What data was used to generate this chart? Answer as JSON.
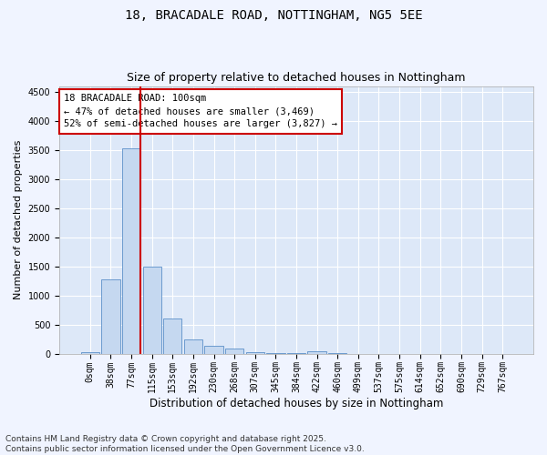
{
  "title": "18, BRACADALE ROAD, NOTTINGHAM, NG5 5EE",
  "subtitle": "Size of property relative to detached houses in Nottingham",
  "xlabel": "Distribution of detached houses by size in Nottingham",
  "ylabel": "Number of detached properties",
  "bar_color": "#c5d8f0",
  "bar_edge_color": "#5b8fc9",
  "fig_facecolor": "#f0f4ff",
  "ax_facecolor": "#dde8f8",
  "grid_color": "#ffffff",
  "categories": [
    "0sqm",
    "38sqm",
    "77sqm",
    "115sqm",
    "153sqm",
    "192sqm",
    "230sqm",
    "268sqm",
    "307sqm",
    "345sqm",
    "384sqm",
    "422sqm",
    "460sqm",
    "499sqm",
    "537sqm",
    "575sqm",
    "614sqm",
    "652sqm",
    "690sqm",
    "729sqm",
    "767sqm"
  ],
  "values": [
    20,
    1280,
    3530,
    1490,
    600,
    250,
    130,
    90,
    30,
    10,
    5,
    40,
    10,
    0,
    0,
    0,
    0,
    0,
    0,
    0,
    0
  ],
  "vline_color": "#cc0000",
  "vline_x_index": 2,
  "annotation_text": "18 BRACADALE ROAD: 100sqm\n← 47% of detached houses are smaller (3,469)\n52% of semi-detached houses are larger (3,827) →",
  "annotation_box_color": "#ffffff",
  "annotation_box_edge": "#cc0000",
  "ylim": [
    0,
    4600
  ],
  "yticks": [
    0,
    500,
    1000,
    1500,
    2000,
    2500,
    3000,
    3500,
    4000,
    4500
  ],
  "footer": "Contains HM Land Registry data © Crown copyright and database right 2025.\nContains public sector information licensed under the Open Government Licence v3.0.",
  "title_fontsize": 10,
  "subtitle_fontsize": 9,
  "xlabel_fontsize": 8.5,
  "ylabel_fontsize": 8,
  "tick_fontsize": 7,
  "annotation_fontsize": 7.5,
  "footer_fontsize": 6.5
}
